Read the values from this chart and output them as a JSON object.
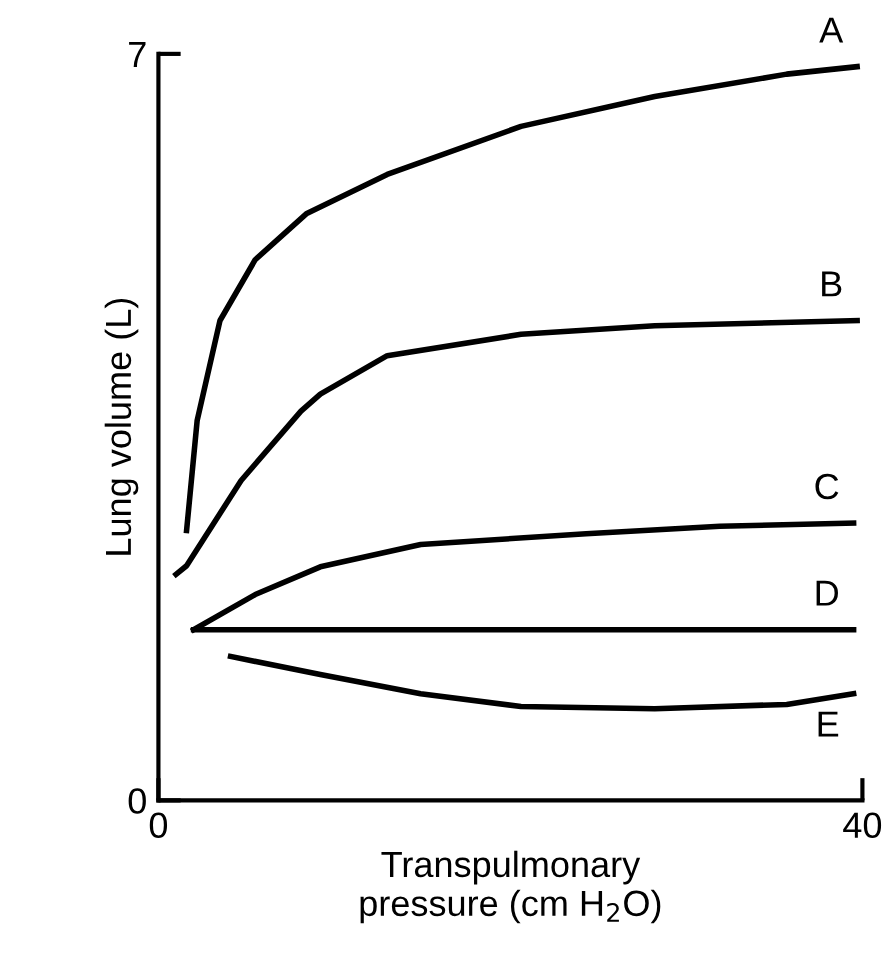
{
  "chart_data": {
    "type": "line",
    "xlabel": "Transpulmonary\npressure (cm H$_{2}$O)",
    "ylabel": "Lung volume (L)",
    "xlim": [
      0,
      40
    ],
    "ylim": [
      0,
      7
    ],
    "xticks": [
      0,
      40
    ],
    "yticks": [
      0,
      7
    ],
    "grid": false,
    "legend": false,
    "marker": "none",
    "line_style": "solid",
    "series": [
      {
        "name": "A",
        "color": "#000000",
        "x": [
          1.6,
          2.2,
          3.5,
          5.5,
          8.4,
          13,
          20.6,
          28.2,
          35.7,
          39.7
        ],
        "values": [
          2.53,
          3.56,
          4.5,
          5.07,
          5.5,
          5.87,
          6.32,
          6.6,
          6.81,
          6.88
        ]
      },
      {
        "name": "B",
        "color": "#000000",
        "x": [
          1.0,
          1.6,
          4.7,
          8.1,
          9.2,
          13,
          20.6,
          28.2,
          39.7
        ],
        "values": [
          2.12,
          2.2,
          3.0,
          3.65,
          3.81,
          4.17,
          4.37,
          4.45,
          4.5
        ]
      },
      {
        "name": "C",
        "color": "#000000",
        "x": [
          2.0,
          5.5,
          9.2,
          14.9,
          24.3,
          31.9,
          39.5
        ],
        "values": [
          1.6,
          1.93,
          2.19,
          2.4,
          2.5,
          2.57,
          2.6
        ]
      },
      {
        "name": "D",
        "color": "#000000",
        "x": [
          2.0,
          39.5
        ],
        "values": [
          1.6,
          1.6
        ]
      },
      {
        "name": "E",
        "color": "#000000",
        "x": [
          4.1,
          9.2,
          14.9,
          20.6,
          28.2,
          35.7,
          39.5
        ],
        "values": [
          1.35,
          1.18,
          1.0,
          0.88,
          0.86,
          0.9,
          1.0
        ]
      }
    ]
  }
}
